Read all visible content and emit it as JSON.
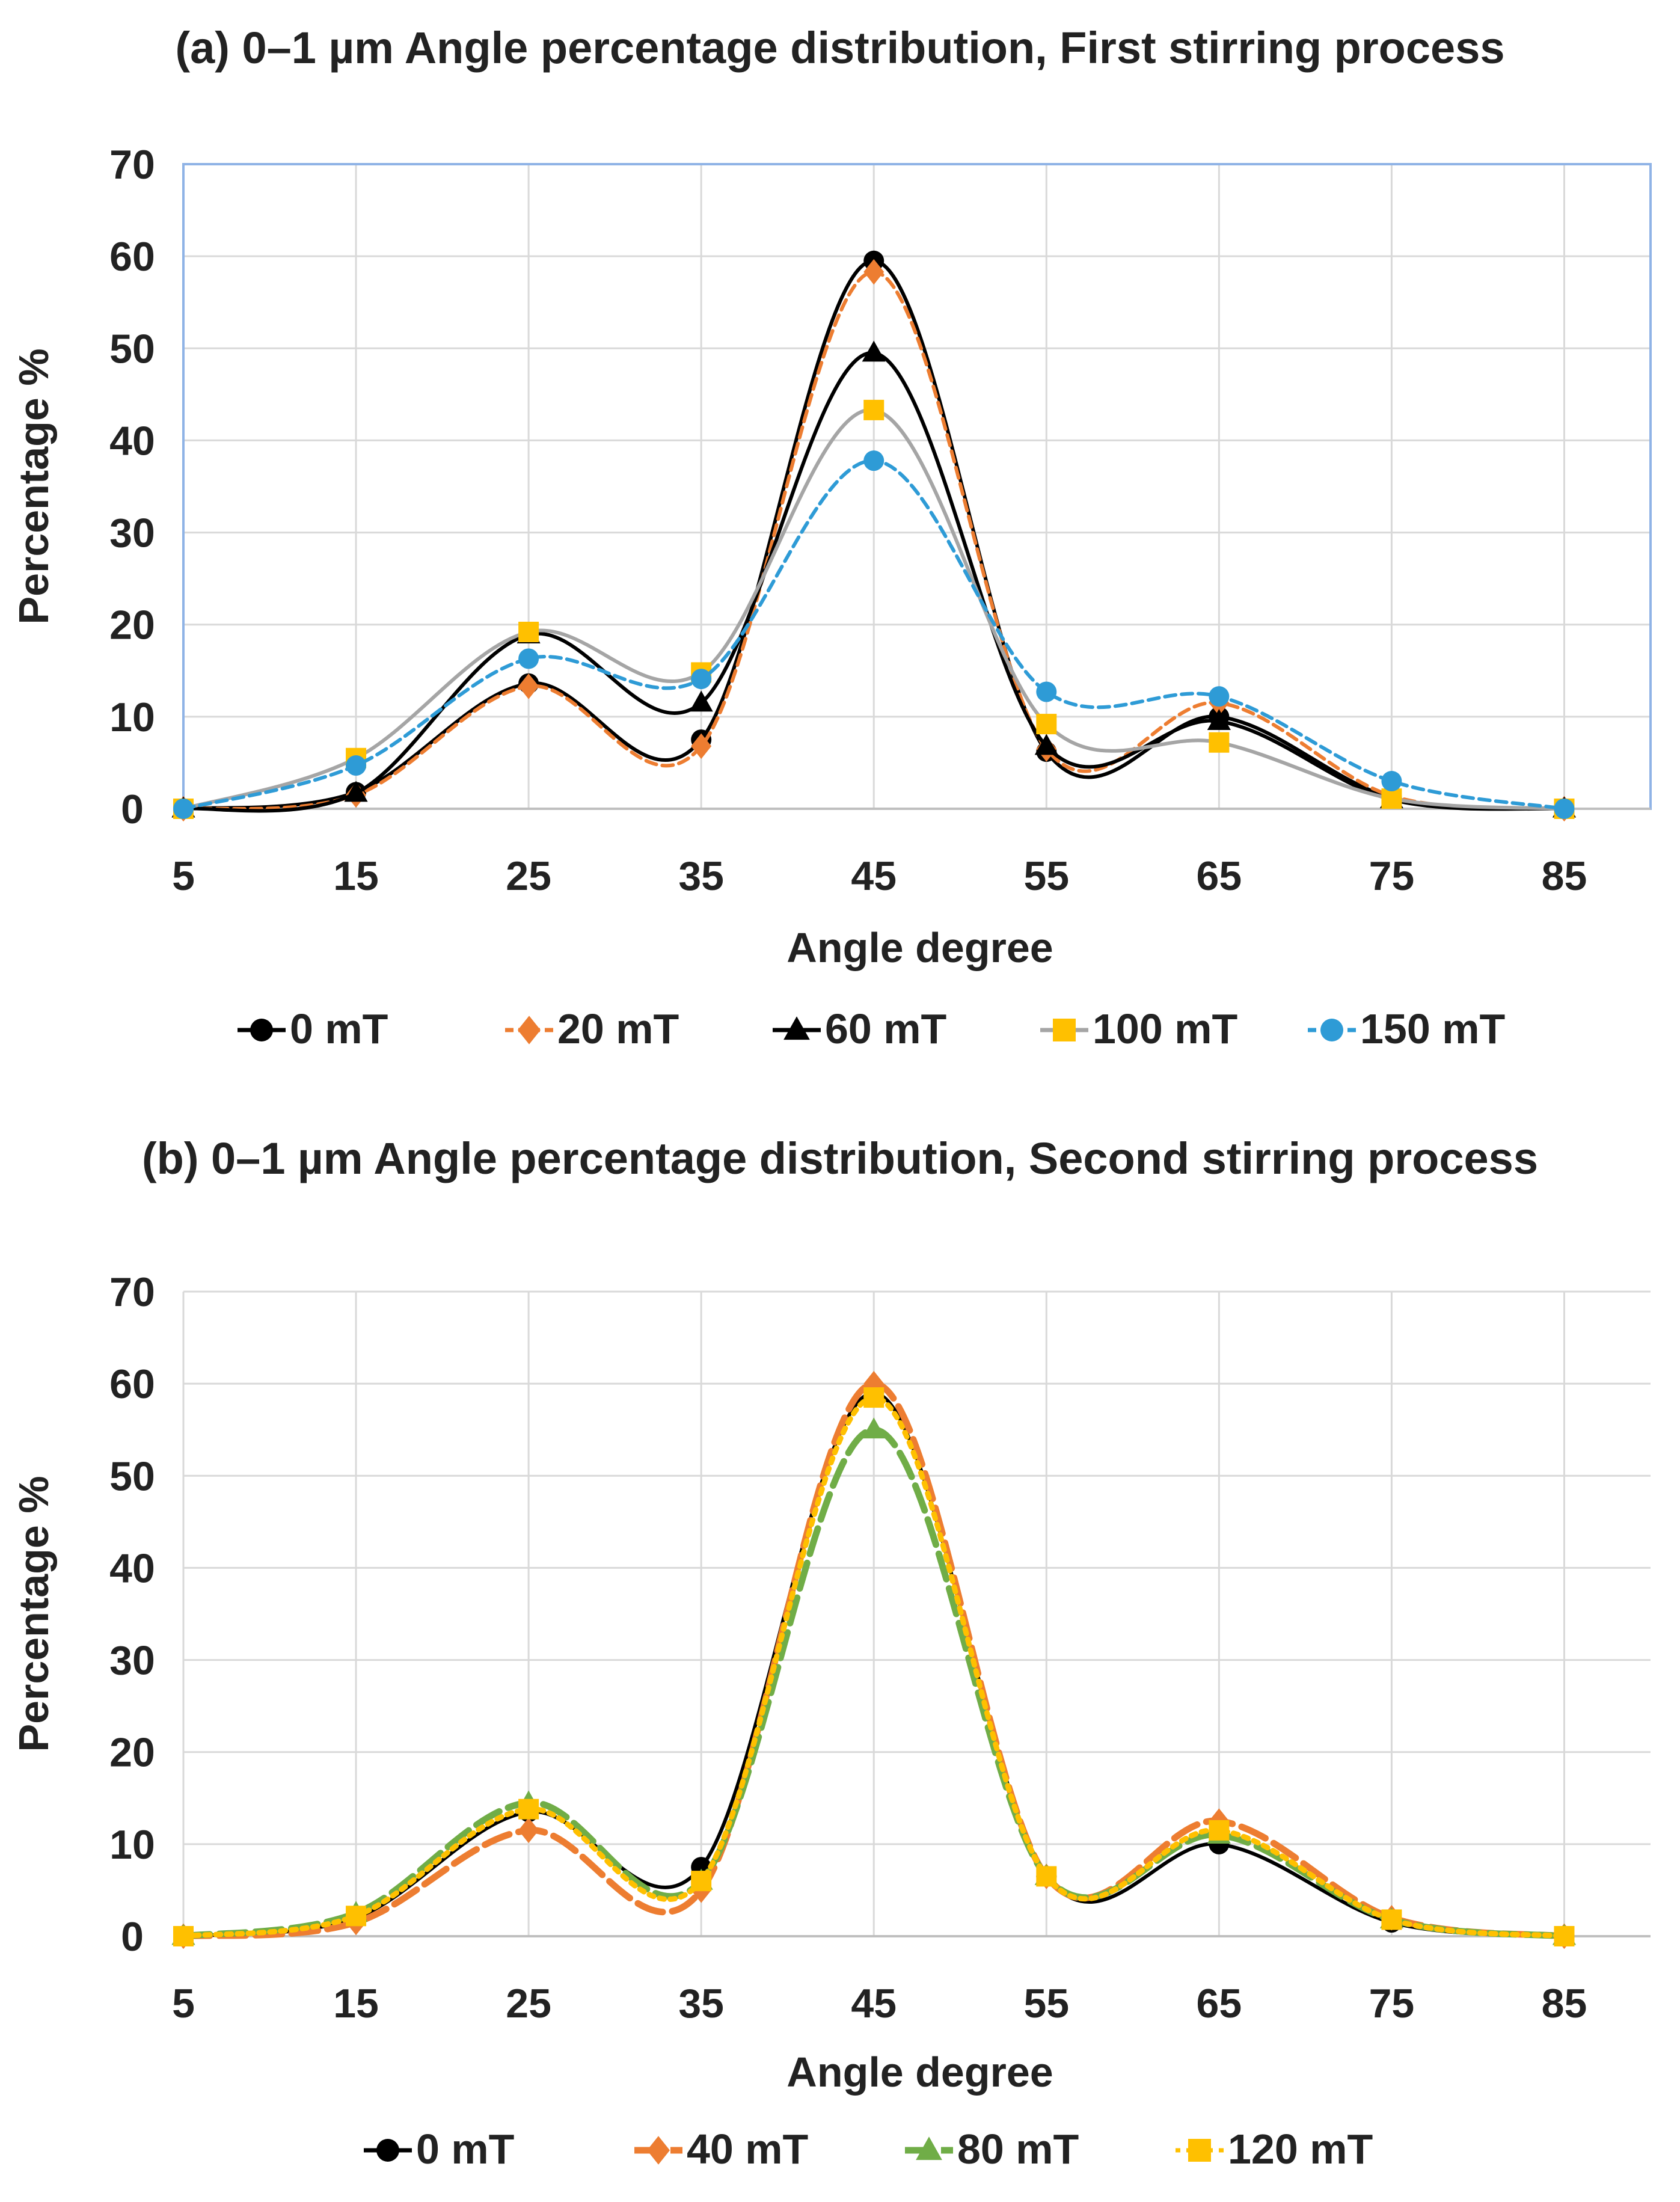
{
  "chart_data": [
    {
      "type": "line",
      "title": "(a) 0–1 µm Angle percentage distribution, First stirring process",
      "xlabel": "Angle degree",
      "ylabel": "Percentage %",
      "x": [
        5,
        15,
        25,
        35,
        45,
        55,
        65,
        75,
        85
      ],
      "xlim": [
        5,
        90
      ],
      "ylim": [
        0,
        70
      ],
      "yticks": [
        0,
        10,
        20,
        30,
        40,
        50,
        60,
        70
      ],
      "grid": true,
      "legend_position": "bottom",
      "series": [
        {
          "name": "0 mT",
          "color": "#000000",
          "marker": "circle",
          "dash": "solid",
          "values": [
            0,
            1.8,
            13.6,
            7.5,
            59.5,
            6.2,
            10.0,
            1.2,
            0
          ]
        },
        {
          "name": "20 mT",
          "color": "#ED7D31",
          "marker": "diamond",
          "dash": "dash",
          "values": [
            0,
            1.5,
            13.3,
            6.8,
            58.3,
            6.5,
            11.5,
            1.4,
            0
          ]
        },
        {
          "name": "60 mT",
          "color": "#000000",
          "marker": "triangle",
          "dash": "solid",
          "values": [
            0,
            1.7,
            18.9,
            11.5,
            49.5,
            6.8,
            9.5,
            1.0,
            0
          ]
        },
        {
          "name": "100 mT",
          "color": "#FFC000",
          "line_color": "#A5A5A5",
          "marker": "square",
          "dash": "solid",
          "values": [
            0,
            5.5,
            19.2,
            14.8,
            43.3,
            9.2,
            7.2,
            1.1,
            0
          ]
        },
        {
          "name": "150 mT",
          "color": "#2E9BD6",
          "marker": "circle",
          "dash": "dash",
          "values": [
            0,
            4.7,
            16.3,
            14.1,
            37.8,
            12.7,
            12.2,
            3.0,
            0
          ]
        }
      ]
    },
    {
      "type": "line",
      "title": "(b) 0–1 µm Angle percentage distribution, Second stirring process",
      "xlabel": "Angle degree",
      "ylabel": "Percentage %",
      "x": [
        5,
        15,
        25,
        35,
        45,
        55,
        65,
        75,
        85
      ],
      "xlim": [
        5,
        90
      ],
      "ylim": [
        0,
        70
      ],
      "yticks": [
        0,
        10,
        20,
        30,
        40,
        50,
        60,
        70
      ],
      "grid": true,
      "legend_position": "bottom",
      "series": [
        {
          "name": "0 mT",
          "color": "#000000",
          "marker": "circle",
          "dash": "solid",
          "values": [
            0,
            2.0,
            13.5,
            7.5,
            59.0,
            6.5,
            10.0,
            1.5,
            0
          ]
        },
        {
          "name": "40 mT",
          "color": "#ED7D31",
          "marker": "diamond",
          "dash": "longdash",
          "values": [
            0,
            1.5,
            11.5,
            5.0,
            60.0,
            6.5,
            12.5,
            2.0,
            0
          ]
        },
        {
          "name": "80 mT",
          "color": "#70AD47",
          "marker": "triangle",
          "dash": "longdash",
          "values": [
            0,
            2.5,
            14.5,
            6.0,
            55.0,
            6.5,
            11.0,
            1.8,
            0
          ]
        },
        {
          "name": "120 mT",
          "color": "#FFC000",
          "marker": "square",
          "dash": "dot",
          "values": [
            0,
            2.2,
            13.8,
            6.0,
            58.5,
            6.5,
            11.5,
            1.8,
            0
          ]
        }
      ]
    }
  ]
}
